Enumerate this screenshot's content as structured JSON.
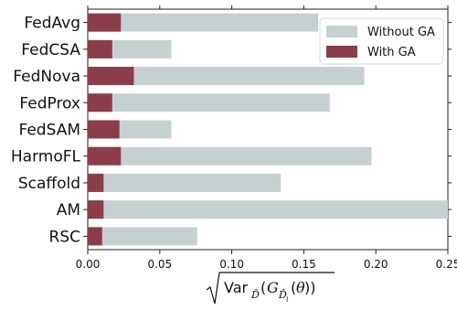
{
  "chart_data": {
    "type": "bar",
    "orientation": "horizontal",
    "stacked": false,
    "categories": [
      "FedAvg",
      "FedCSA",
      "FedNova",
      "FedProx",
      "FedSAM",
      "HarmoFL",
      "Scaffold",
      "AM",
      "RSC"
    ],
    "series": [
      {
        "name": "Without GA",
        "color": "#c7d0d1",
        "values": [
          0.16,
          0.058,
          0.192,
          0.168,
          0.058,
          0.197,
          0.134,
          0.25,
          0.076
        ]
      },
      {
        "name": "With GA",
        "color": "#8b3d4a",
        "values": [
          0.023,
          0.017,
          0.032,
          0.017,
          0.022,
          0.023,
          0.011,
          0.011,
          0.01
        ]
      }
    ],
    "xlim": [
      0,
      0.25
    ],
    "xticks": [
      "0.00",
      "0.05",
      "0.10",
      "0.15",
      "0.20",
      "0.25"
    ],
    "xlabel": "sqrt(Var_D̂(G_D̂i(θ)))",
    "legend_position": "top-right",
    "grid": false
  }
}
